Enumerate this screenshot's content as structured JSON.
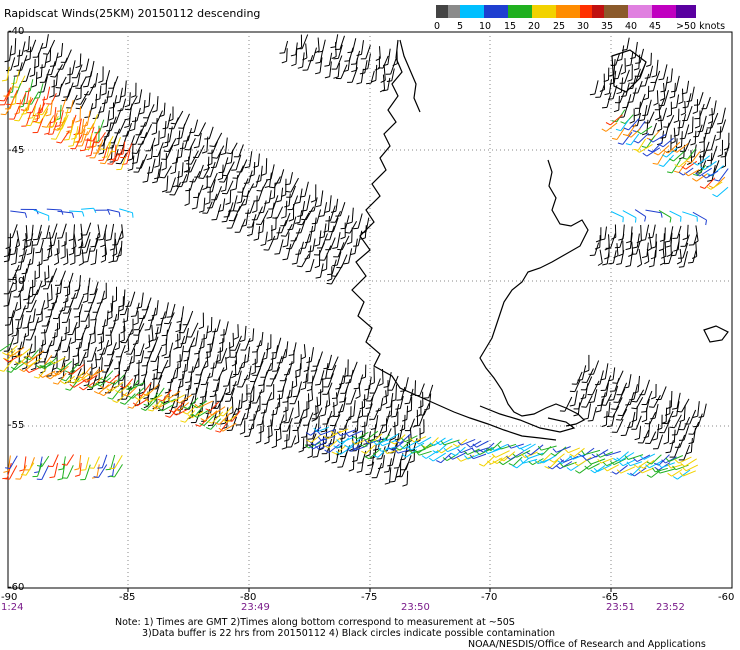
{
  "header": {
    "title": "Rapidscat Winds(25KM) 20150112 descending"
  },
  "legend": {
    "colors": [
      "#444444",
      "#8a8a8a",
      "#00bfff",
      "#1f3fd0",
      "#20b020",
      "#f2d200",
      "#ff8c00",
      "#ff3000",
      "#c01010",
      "#8b5a2b",
      "#e080e0",
      "#c000c0",
      "#5a00a0"
    ],
    "labels": [
      "0",
      "5",
      "10",
      "15",
      "20",
      "25",
      "30",
      "35",
      "40",
      "45",
      ">50 knots"
    ]
  },
  "axes": {
    "lat_labels": [
      "-40",
      "-45",
      "-50",
      "-55",
      "-60"
    ],
    "lon_labels": [
      "-90",
      "-85",
      "-80",
      "-75",
      "-70",
      "-65",
      "-60"
    ]
  },
  "times": [
    "1:24",
    "23:49",
    "23:50",
    "23:51",
    "23:52"
  ],
  "notes": {
    "line1": "Note: 1) Times are GMT 2)Times along bottom correspond to measurement at ~50S",
    "line2": "3)Data buffer is 22 hrs from 20150112 4) Black circles indicate possible contamination",
    "credit": "NOAA/NESDIS/Office of Research and Applications"
  }
}
